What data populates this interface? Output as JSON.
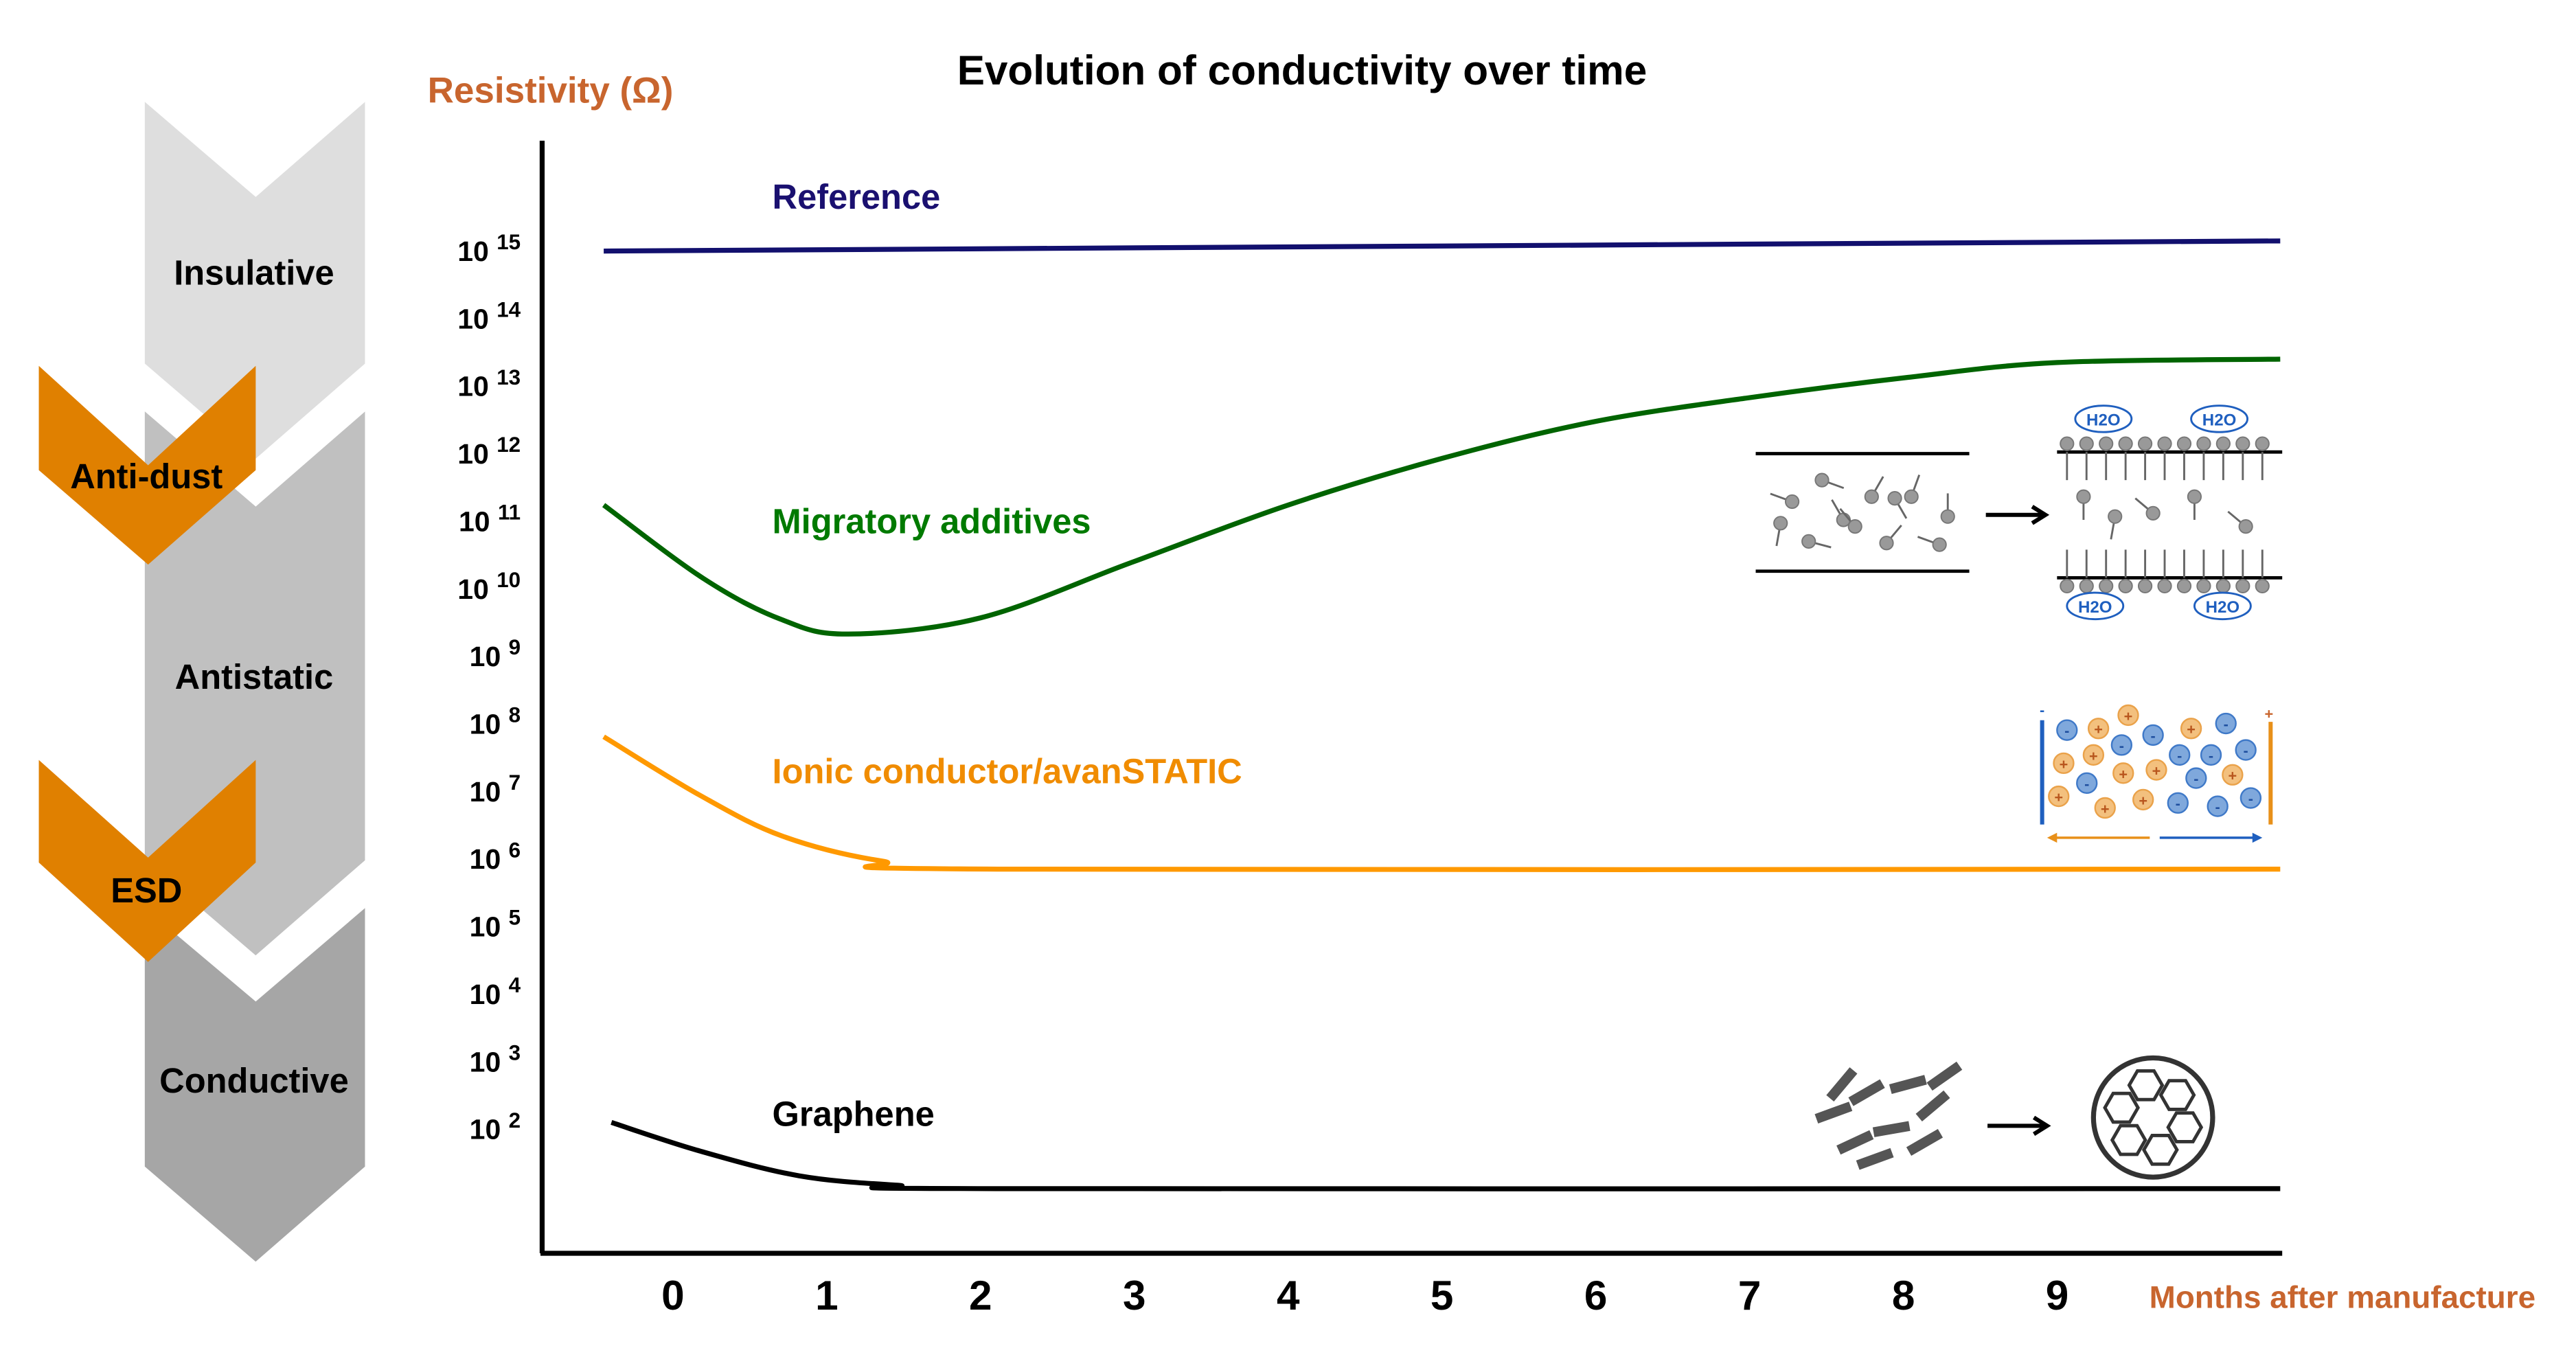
{
  "chart_data": {
    "type": "line",
    "title": "Evolution of conductivity over time",
    "ylabel": "Resistivity (Ω)",
    "xlabel": "Months after manufacture",
    "y_scale": "log",
    "ylim_exponent": [
      0.5,
      16.6
    ],
    "xlim": [
      -0.9,
      10.5
    ],
    "x_ticks": [
      0,
      1,
      2,
      3,
      4,
      5,
      6,
      7,
      8,
      9
    ],
    "y_tick_exponents": [
      15,
      14,
      13,
      12,
      11,
      10,
      9,
      8,
      7,
      6,
      5,
      4,
      3,
      2
    ],
    "y_tick_base": "10",
    "grid": false,
    "series": [
      {
        "name": "Reference",
        "color": "#12106e",
        "label_color": "#1a1070",
        "x": [
          -0.45,
          10.45
        ],
        "log10_y": [
          14.95,
          15.1
        ]
      },
      {
        "name": "Migratory additives",
        "color": "#006400",
        "label_color": "#007a00",
        "x": [
          -0.45,
          0.2,
          0.7,
          1.14,
          2.0,
          2.97,
          4.0,
          5.0,
          5.98,
          7.0,
          8.03,
          9.0,
          10.45
        ],
        "log10_y": [
          11.19,
          10.1,
          9.5,
          9.28,
          9.52,
          10.33,
          11.19,
          11.88,
          12.42,
          12.78,
          13.08,
          13.3,
          13.35
        ]
      },
      {
        "name": "Ionic conductor/avanSTATIC",
        "color": "#ff9900",
        "label_color": "#f08c00",
        "x": [
          -0.45,
          0.17,
          0.71,
          1.36,
          2.11,
          10.45
        ],
        "log10_y": [
          7.76,
          6.9,
          6.29,
          5.92,
          5.8,
          5.8
        ]
      },
      {
        "name": "Graphene",
        "color": "#000000",
        "label_color": "#000000",
        "x": [
          -0.4,
          0.17,
          0.82,
          1.46,
          2.11,
          10.45
        ],
        "log10_y": [
          2.05,
          1.63,
          1.26,
          1.12,
          1.07,
          1.07
        ]
      }
    ],
    "axis_label_color": "#c8652e"
  },
  "classification": {
    "bands": [
      {
        "label": "Insulative",
        "color": "#dedede"
      },
      {
        "label": "Antistatic",
        "color": "#c0c0c0"
      },
      {
        "label": "Conductive",
        "color": "#a6a6a6"
      }
    ],
    "markers": [
      {
        "label": "Anti-dust",
        "color": "#e08000"
      },
      {
        "label": "ESD",
        "color": "#e08000"
      }
    ]
  },
  "illustrations": {
    "water_label": "H2O",
    "negative_sign": "-",
    "positive_sign": "+"
  }
}
